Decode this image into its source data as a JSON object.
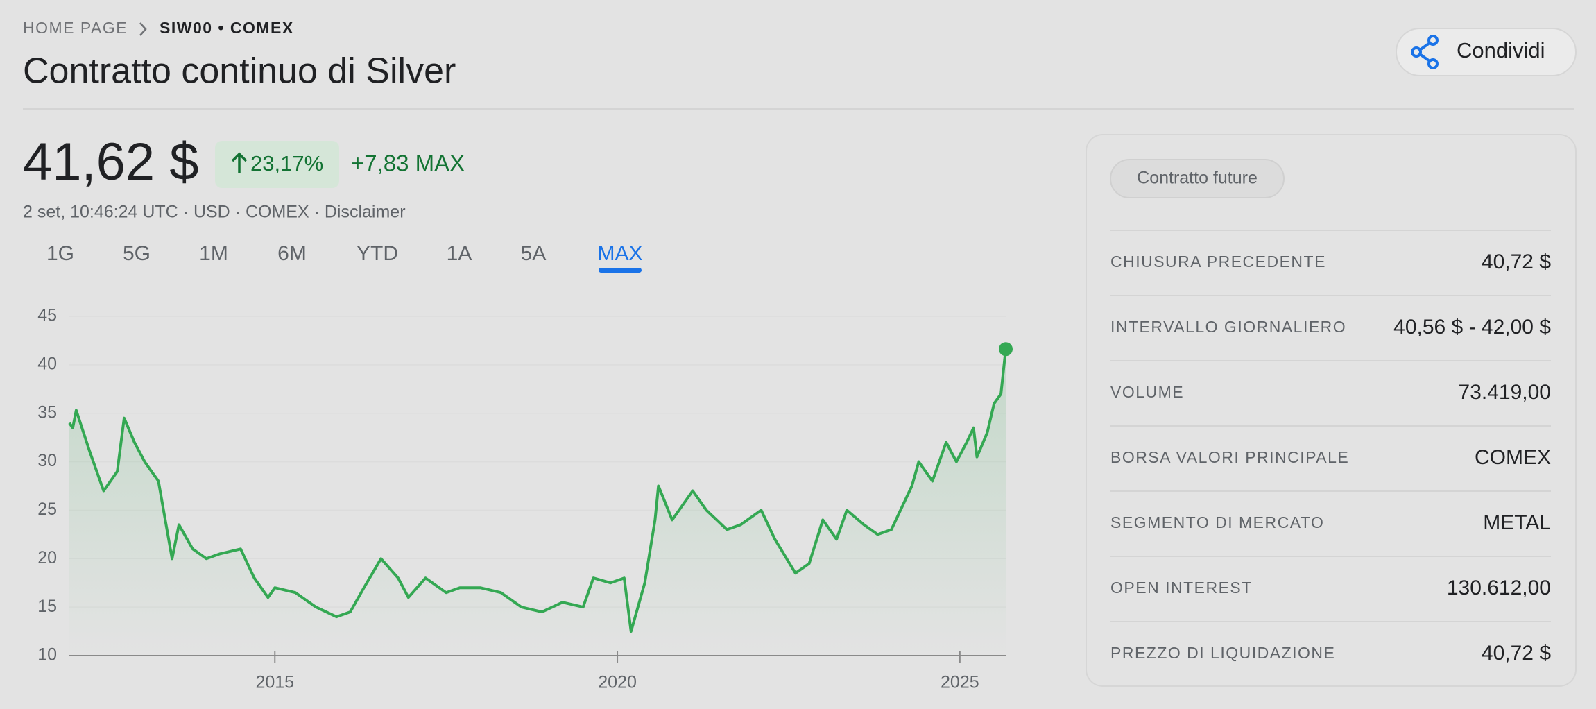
{
  "breadcrumb": {
    "home": "HOME PAGE",
    "current": "SIW00 • COMEX"
  },
  "title": "Contratto continuo di Silver",
  "share": "Condividi",
  "quote": {
    "price": "41,62 $",
    "change_pct": "23,17%",
    "change_abs": "+7,83 MAX",
    "meta": "2 set, 10:46:24 UTC · USD · COMEX · Disclaimer"
  },
  "tabs": {
    "items": [
      "1G",
      "5G",
      "1M",
      "6M",
      "YTD",
      "1A",
      "5A",
      "MAX"
    ],
    "selected": 7
  },
  "panel": {
    "badge": "Contratto future",
    "rows": [
      [
        "CHIUSURA PRECEDENTE",
        "40,72 $"
      ],
      [
        "INTERVALLO GIORNALIERO",
        "40,56 $ - 42,00 $"
      ],
      [
        "VOLUME",
        "73.419,00"
      ],
      [
        "BORSA VALORI PRINCIPALE",
        "COMEX"
      ],
      [
        "SEGMENTO DI MERCATO",
        "METAL"
      ],
      [
        "OPEN INTEREST",
        "130.612,00"
      ],
      [
        "PREZZO DI LIQUIDAZIONE",
        "40,72 $"
      ]
    ]
  },
  "chart_data": {
    "type": "line",
    "color": "#34a853",
    "grid": true,
    "x": [
      2012.0,
      2012.05,
      2012.1,
      2012.3,
      2012.5,
      2012.7,
      2012.8,
      2012.95,
      2013.1,
      2013.3,
      2013.5,
      2013.6,
      2013.8,
      2014.0,
      2014.2,
      2014.5,
      2014.7,
      2014.9,
      2015.0,
      2015.3,
      2015.6,
      2015.9,
      2016.1,
      2016.3,
      2016.55,
      2016.8,
      2016.95,
      2017.2,
      2017.5,
      2017.7,
      2018.0,
      2018.3,
      2018.6,
      2018.9,
      2019.2,
      2019.5,
      2019.65,
      2019.9,
      2020.1,
      2020.2,
      2020.4,
      2020.55,
      2020.6,
      2020.8,
      2021.1,
      2021.3,
      2021.6,
      2021.8,
      2022.1,
      2022.3,
      2022.6,
      2022.8,
      2023.0,
      2023.2,
      2023.35,
      2023.6,
      2023.8,
      2024.0,
      2024.3,
      2024.4,
      2024.6,
      2024.8,
      2024.95,
      2025.1,
      2025.2,
      2025.25,
      2025.4,
      2025.5,
      2025.6,
      2025.67
    ],
    "values": [
      34,
      33.5,
      35.3,
      31,
      27,
      29,
      34.5,
      32,
      30,
      28,
      20,
      23.5,
      21,
      20,
      20.5,
      21,
      18,
      16,
      17,
      16.5,
      15,
      14,
      14.5,
      17,
      20,
      18,
      16,
      18,
      16.5,
      17,
      17,
      16.5,
      15,
      14.5,
      15.5,
      15,
      18,
      17.5,
      18,
      12.5,
      17.5,
      24,
      27.5,
      24,
      27,
      25,
      23,
      23.5,
      25,
      22,
      18.5,
      19.5,
      24,
      22,
      25,
      23.5,
      22.5,
      23,
      27.5,
      30,
      28,
      32,
      30,
      32,
      33.5,
      30.5,
      33,
      36,
      37,
      41.62
    ],
    "xlim": [
      2012.0,
      2025.67
    ],
    "xticks": [
      2015,
      2020,
      2025
    ],
    "ylim": [
      10,
      45
    ],
    "yticks": [
      10,
      15,
      20,
      25,
      30,
      35,
      40,
      45
    ]
  }
}
